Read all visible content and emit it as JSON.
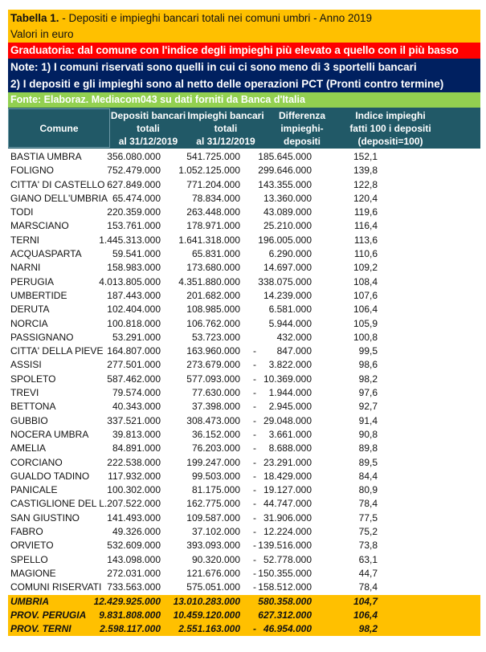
{
  "title_bold": "Tabella 1.",
  "title_rest": " - Depositi e impieghi bancari totali nei comuni umbri - Anno 2019",
  "subtitle": "Valori in euro",
  "ranking_note": "Graduatoria: dal comune con l'indice degli impieghi più elevato a quello con il più basso",
  "note1": "Note: 1) I comuni riservati sono quelli in cui ci sono meno di 3 sportelli bancari",
  "note2": "2) I depositi e gli impieghi sono al netto delle operazioni PCT (Pronti contro termine)",
  "source": "Fonte: Elaboraz. Mediacom043 su dati forniti da Banca d'Italia",
  "colors": {
    "title_bg": "#ffc000",
    "ranking_bg": "#ff0000",
    "notes_bg": "#002060",
    "source_bg": "#92d050",
    "header_bg": "#215967"
  },
  "headers": {
    "comune": "Comune",
    "depositi": [
      "Depositi bancari",
      "totali",
      "al 31/12/2019"
    ],
    "impieghi": [
      "Impieghi  bancari",
      "totali",
      "al 31/12/2019"
    ],
    "differenza": [
      "Differenza",
      "impieghi-depositi"
    ],
    "indice": [
      "Indice impieghi",
      "fatti 100  i depositi",
      "(depositi=100)"
    ]
  },
  "rows": [
    [
      "BASTIA UMBRA",
      "356.080.000",
      "541.725.000",
      "",
      "185.645.000",
      "152,1"
    ],
    [
      "FOLIGNO",
      "752.479.000",
      "1.052.125.000",
      "",
      "299.646.000",
      "139,8"
    ],
    [
      "CITTA' DI CASTELLO",
      "627.849.000",
      "771.204.000",
      "",
      "143.355.000",
      "122,8"
    ],
    [
      "GIANO DELL'UMBRIA",
      "65.474.000",
      "78.834.000",
      "",
      "13.360.000",
      "120,4"
    ],
    [
      "TODI",
      "220.359.000",
      "263.448.000",
      "",
      "43.089.000",
      "119,6"
    ],
    [
      "MARSCIANO",
      "153.761.000",
      "178.971.000",
      "",
      "25.210.000",
      "116,4"
    ],
    [
      "TERNI",
      "1.445.313.000",
      "1.641.318.000",
      "",
      "196.005.000",
      "113,6"
    ],
    [
      "ACQUASPARTA",
      "59.541.000",
      "65.831.000",
      "",
      "6.290.000",
      "110,6"
    ],
    [
      "NARNI",
      "158.983.000",
      "173.680.000",
      "",
      "14.697.000",
      "109,2"
    ],
    [
      "PERUGIA",
      "4.013.805.000",
      "4.351.880.000",
      "",
      "338.075.000",
      "108,4"
    ],
    [
      "UMBERTIDE",
      "187.443.000",
      "201.682.000",
      "",
      "14.239.000",
      "107,6"
    ],
    [
      "DERUTA",
      "102.404.000",
      "108.985.000",
      "",
      "6.581.000",
      "106,4"
    ],
    [
      "NORCIA",
      "100.818.000",
      "106.762.000",
      "",
      "5.944.000",
      "105,9"
    ],
    [
      "PASSIGNANO",
      "53.291.000",
      "53.723.000",
      "",
      "432.000",
      "100,8"
    ],
    [
      "CITTA' DELLA PIEVE",
      "164.807.000",
      "163.960.000",
      "-",
      "847.000",
      "99,5"
    ],
    [
      "ASSISI",
      "277.501.000",
      "273.679.000",
      "-",
      "3.822.000",
      "98,6"
    ],
    [
      "SPOLETO",
      "587.462.000",
      "577.093.000",
      "-",
      "10.369.000",
      "98,2"
    ],
    [
      "TREVI",
      "79.574.000",
      "77.630.000",
      "-",
      "1.944.000",
      "97,6"
    ],
    [
      "BETTONA",
      "40.343.000",
      "37.398.000",
      "-",
      "2.945.000",
      "92,7"
    ],
    [
      "GUBBIO",
      "337.521.000",
      "308.473.000",
      "-",
      "29.048.000",
      "91,4"
    ],
    [
      "NOCERA UMBRA",
      "39.813.000",
      "36.152.000",
      "-",
      "3.661.000",
      "90,8"
    ],
    [
      "AMELIA",
      "84.891.000",
      "76.203.000",
      "-",
      "8.688.000",
      "89,8"
    ],
    [
      "CORCIANO",
      "222.538.000",
      "199.247.000",
      "-",
      "23.291.000",
      "89,5"
    ],
    [
      "GUALDO TADINO",
      "117.932.000",
      "99.503.000",
      "-",
      "18.429.000",
      "84,4"
    ],
    [
      "PANICALE",
      "100.302.000",
      "81.175.000",
      "-",
      "19.127.000",
      "80,9"
    ],
    [
      "CASTIGLIONE DEL L.",
      "207.522.000",
      "162.775.000",
      "-",
      "44.747.000",
      "78,4"
    ],
    [
      "SAN GIUSTINO",
      "141.493.000",
      "109.587.000",
      "-",
      "31.906.000",
      "77,5"
    ],
    [
      "FABRO",
      "49.326.000",
      "37.102.000",
      "-",
      "12.224.000",
      "75,2"
    ],
    [
      "ORVIETO",
      "532.609.000",
      "393.093.000",
      "-",
      "139.516.000",
      "73,8"
    ],
    [
      "SPELLO",
      "143.098.000",
      "90.320.000",
      "-",
      "52.778.000",
      "63,1"
    ],
    [
      "MAGIONE",
      "272.031.000",
      "121.676.000",
      "-",
      "150.355.000",
      "44,7"
    ],
    [
      "COMUNI RISERVATI",
      "733.563.000",
      "575.051.000",
      "-",
      "158.512.000",
      "78,4"
    ]
  ],
  "totals": [
    [
      "UMBRIA",
      "12.429.925.000",
      "13.010.283.000",
      "",
      "580.358.000",
      "104,7"
    ],
    [
      "PROV. PERUGIA",
      "9.831.808.000",
      "10.459.120.000",
      "",
      "627.312.000",
      "106,4"
    ],
    [
      "PROV. TERNI",
      "2.598.117.000",
      "2.551.163.000",
      "-",
      "46.954.000",
      "98,2"
    ]
  ]
}
